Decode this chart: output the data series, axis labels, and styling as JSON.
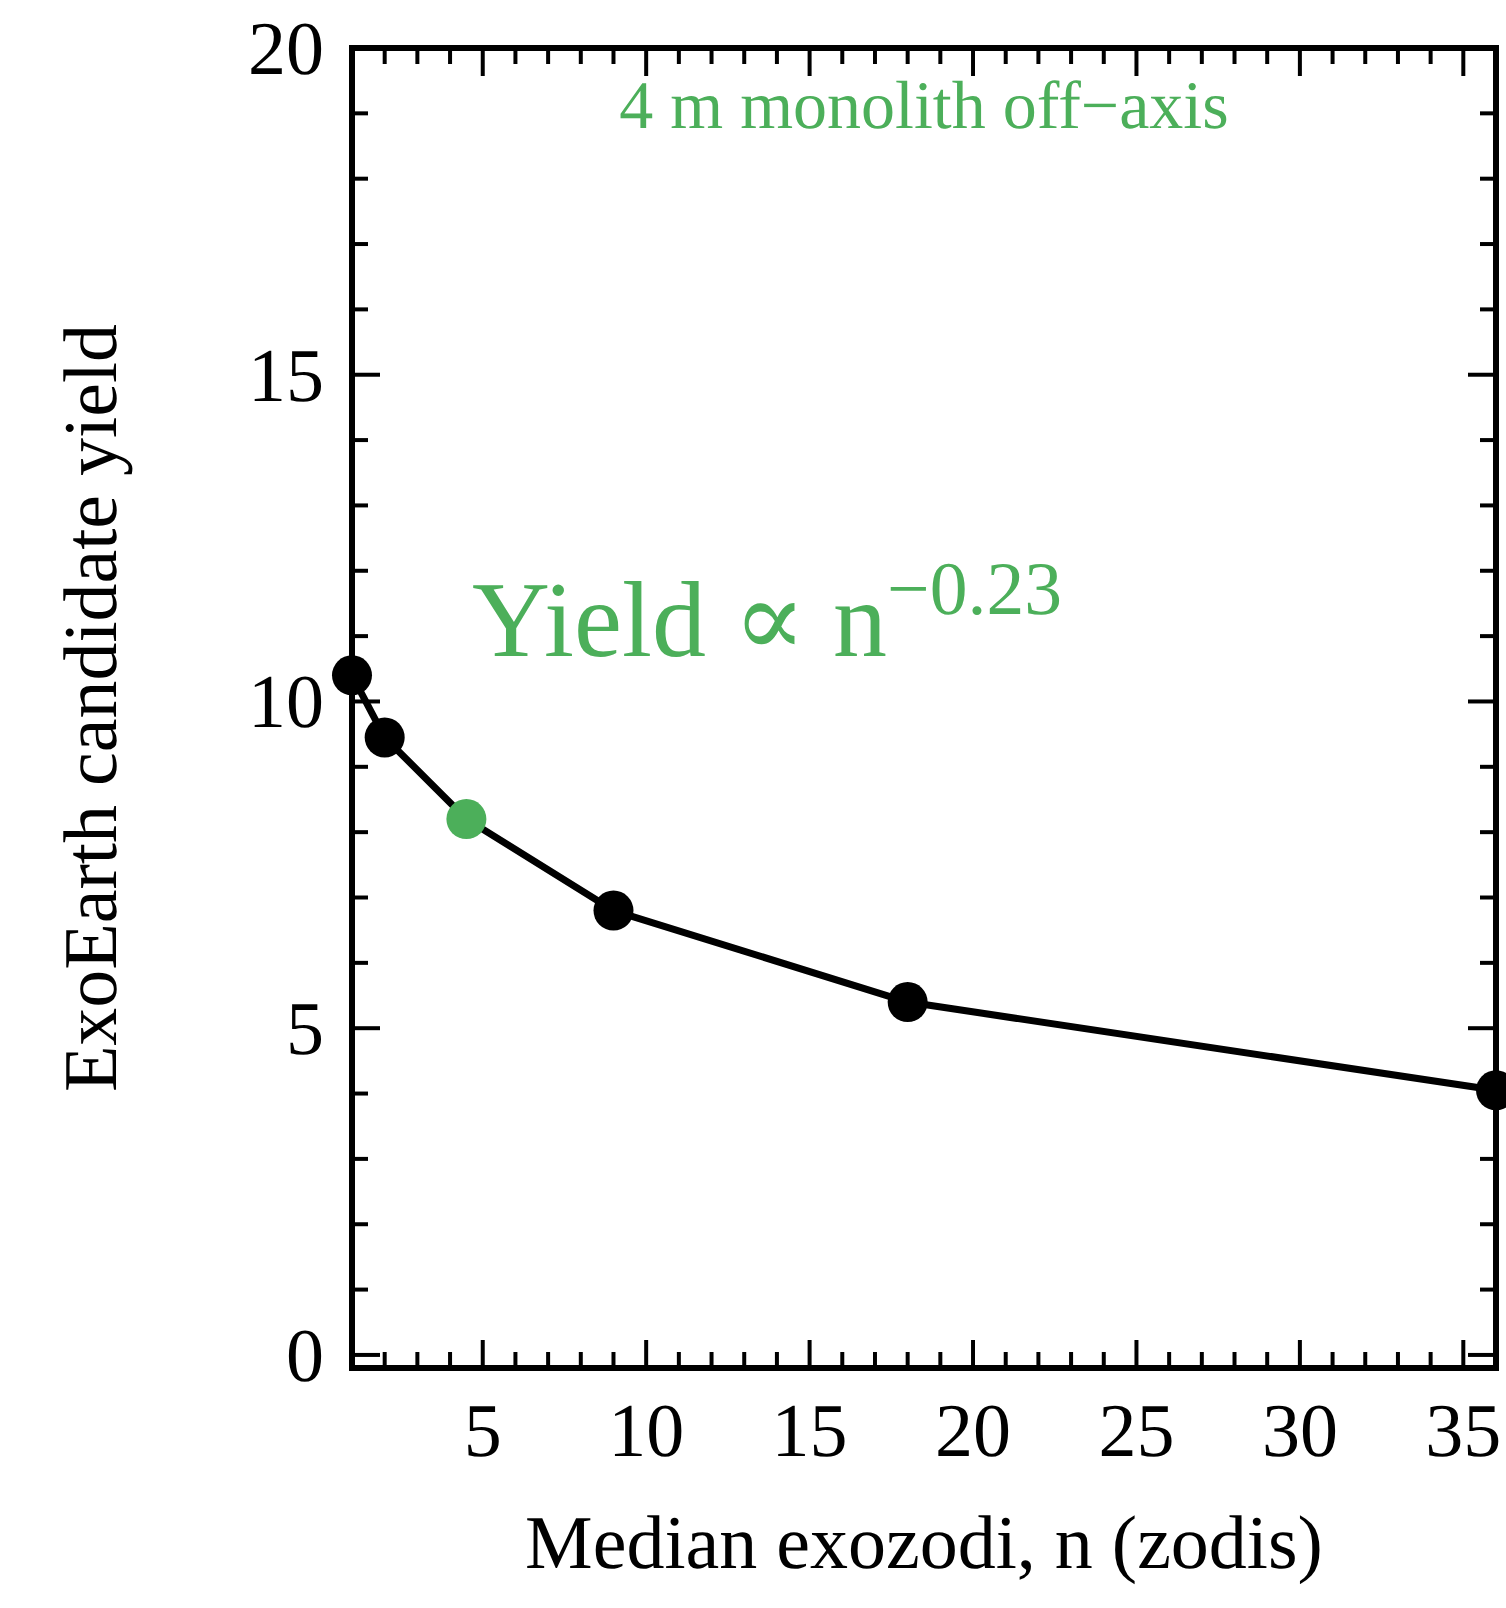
{
  "chart_data": {
    "type": "line",
    "xlabel": "Median exozodi, n (zodis)",
    "ylabel": "ExoEarth candidate yield",
    "annotations": [
      "4 m monolith off−axis",
      "Yield ∝ n$^{−0.23}$"
    ],
    "x": [
      1,
      2,
      4.5,
      9,
      18,
      36
    ],
    "series": [
      {
        "color": "#000000",
        "colors": [
          "#000000",
          "#000000",
          "#4caf5a",
          "#000000",
          "#000000",
          "#000000"
        ],
        "values": [
          10.4,
          9.45,
          8.2,
          6.8,
          5.4,
          4.05
        ]
      }
    ],
    "marker": "circle",
    "line_style": "solid",
    "grid": false,
    "xlim": [
      1,
      36
    ],
    "ylim": [
      -0.2,
      20
    ],
    "xticks": [
      {
        "value": 1,
        "label": null
      },
      {
        "value": 2,
        "label": null
      },
      {
        "value": 3,
        "label": null
      },
      {
        "value": 4,
        "label": null
      },
      5,
      {
        "value": 6,
        "label": null
      },
      {
        "value": 7,
        "label": null
      },
      {
        "value": 8,
        "label": null
      },
      {
        "value": 9,
        "label": null
      },
      10,
      {
        "value": 11,
        "label": null
      },
      {
        "value": 12,
        "label": null
      },
      {
        "value": 13,
        "label": null
      },
      {
        "value": 14,
        "label": null
      },
      15,
      {
        "value": 16,
        "label": null
      },
      {
        "value": 17,
        "label": null
      },
      {
        "value": 18,
        "label": null
      },
      {
        "value": 19,
        "label": null
      },
      20,
      {
        "value": 21,
        "label": null
      },
      {
        "value": 22,
        "label": null
      },
      {
        "value": 23,
        "label": null
      },
      {
        "value": 24,
        "label": null
      },
      25,
      {
        "value": 26,
        "label": null
      },
      {
        "value": 27,
        "label": null
      },
      {
        "value": 28,
        "label": null
      },
      {
        "value": 29,
        "label": null
      },
      30,
      {
        "value": 31,
        "label": null
      },
      {
        "value": 32,
        "label": null
      },
      {
        "value": 33,
        "label": null
      },
      {
        "value": 34,
        "label": null
      },
      35,
      {
        "value": 36,
        "label": null
      }
    ],
    "yticks": [
      0,
      {
        "value": 1,
        "label": null
      },
      {
        "value": 2,
        "label": null
      },
      {
        "value": 3,
        "label": null
      },
      {
        "value": 4,
        "label": null
      },
      5,
      {
        "value": 6,
        "label": null
      },
      {
        "value": 7,
        "label": null
      },
      {
        "value": 8,
        "label": null
      },
      {
        "value": 9,
        "label": null
      },
      10,
      {
        "value": 11,
        "label": null
      },
      {
        "value": 12,
        "label": null
      },
      {
        "value": 13,
        "label": null
      },
      {
        "value": 14,
        "label": null
      },
      15,
      {
        "value": 16,
        "label": null
      },
      {
        "value": 17,
        "label": null
      },
      {
        "value": 18,
        "label": null
      },
      {
        "value": 19,
        "label": null
      },
      20
    ]
  }
}
